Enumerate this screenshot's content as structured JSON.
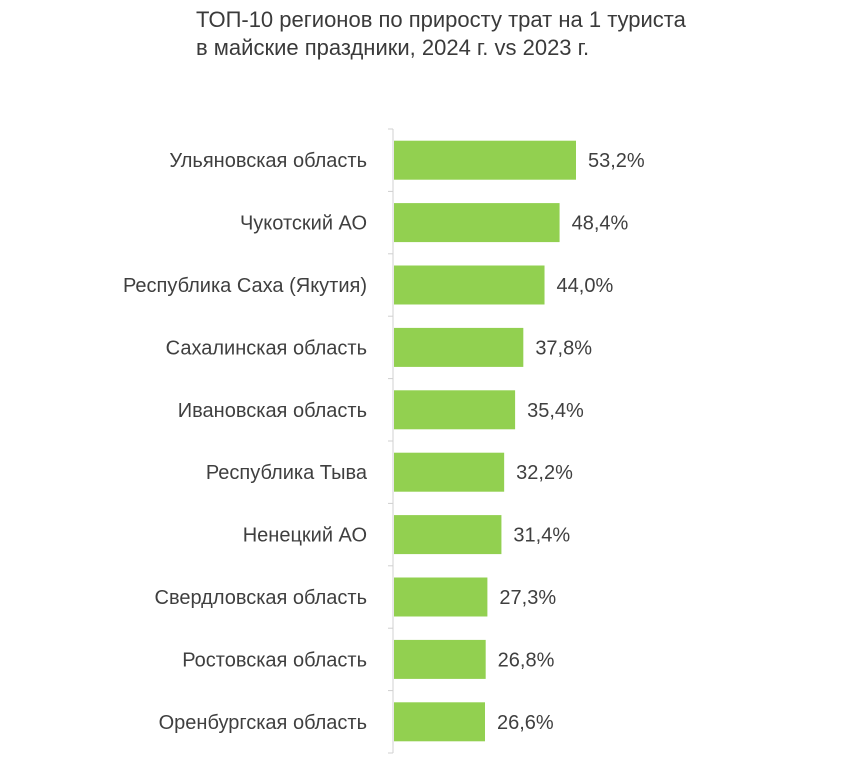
{
  "chart_data": {
    "type": "bar",
    "orientation": "horizontal",
    "title_lines": [
      "ТОП-10 регионов по приросту трат на 1 туриста",
      "в майские праздники, 2024 г. vs 2023 г."
    ],
    "categories": [
      "Ульяновская область",
      "Чукотский АО",
      "Республика Саха (Якутия)",
      "Сахалинская область",
      "Ивановская область",
      "Республика Тыва",
      "Ненецкий АО",
      "Свердловская область",
      "Ростовская область",
      "Оренбургская область"
    ],
    "values": [
      53.2,
      48.4,
      44.0,
      37.8,
      35.4,
      32.2,
      31.4,
      27.3,
      26.8,
      26.6
    ],
    "value_labels": [
      "53,2%",
      "48,4%",
      "44,0%",
      "37,8%",
      "35,4%",
      "32,2%",
      "31,4%",
      "27,3%",
      "26,8%",
      "26,6%"
    ],
    "unit": "%",
    "xlim": [
      0,
      53.2
    ],
    "grid": false,
    "bar_color": "#92d050"
  }
}
